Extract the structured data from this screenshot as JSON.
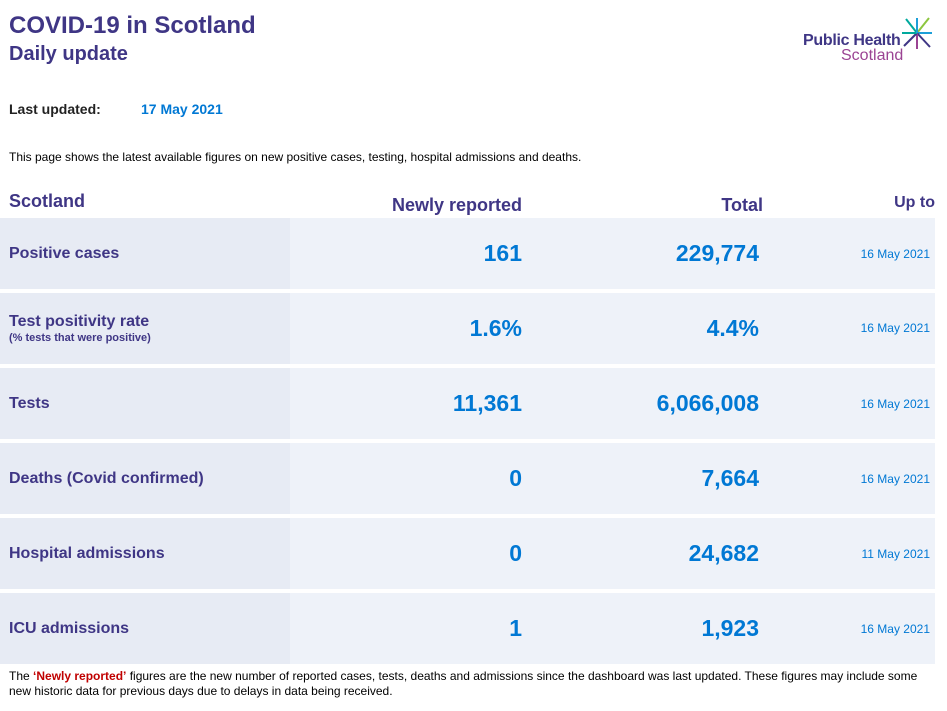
{
  "header": {
    "title": "COVID-19 in Scotland",
    "subtitle": "Daily update",
    "logo_line1": "Public Health",
    "logo_line2": "Scotland"
  },
  "update": {
    "label": "Last updated:",
    "value": "17 May 2021"
  },
  "intro": "This page shows the latest available figures on new positive cases, testing, hospital admissions and deaths.",
  "table": {
    "headers": {
      "area": "Scotland",
      "newly": "Newly reported",
      "total": "Total",
      "upto": "Up to"
    },
    "rows": [
      {
        "label": "Positive cases",
        "sublabel": "",
        "newly": "161",
        "total": "229,774",
        "date": "16 May 2021"
      },
      {
        "label": "Test positivity rate",
        "sublabel": "(% tests that were positive)",
        "newly": "1.6%",
        "total": "4.4%",
        "date": "16 May 2021"
      },
      {
        "label": "Tests",
        "sublabel": "",
        "newly": "11,361",
        "total": "6,066,008",
        "date": "16 May 2021"
      },
      {
        "label": "Deaths (Covid confirmed)",
        "sublabel": "",
        "newly": "0",
        "total": "7,664",
        "date": "16 May 2021"
      },
      {
        "label": "Hospital admissions",
        "sublabel": "",
        "newly": "0",
        "total": "24,682",
        "date": "11 May 2021"
      },
      {
        "label": "ICU admissions",
        "sublabel": "",
        "newly": "1",
        "total": "1,923",
        "date": "16 May 2021"
      }
    ]
  },
  "footnote": {
    "prefix": "The ",
    "highlight": "‘Newly reported’",
    "rest": " figures are the new number of reported cases, tests, deaths and admissions since the dashboard was last updated. These figures may include some new historic data for previous days due to delays in data being received."
  },
  "colors": {
    "primary": "#3f3685",
    "accent": "#0078d4",
    "brand_purple": "#9b4393",
    "highlight": "#c00000",
    "row_bg": "#eef2f9"
  },
  "icons": {
    "logo": "phs-star-logo"
  }
}
